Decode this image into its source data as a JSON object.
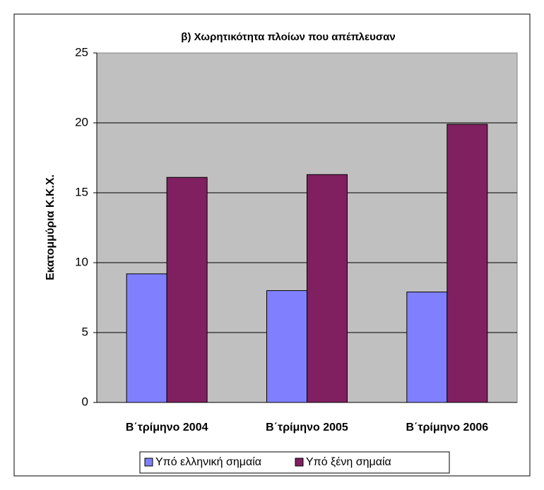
{
  "chart_data": {
    "type": "bar",
    "title": "β) Χωρητικότητα πλοίων που απέπλευσαν",
    "y_label": "Εκατομμύρια Κ.Κ.Χ.",
    "categories": [
      "Β΄τρίμηνο 2004",
      "Β΄τρίμηνο 2005",
      "Β΄τρίμηνο 2006"
    ],
    "series": [
      {
        "name": "Υπό ελληνική σημαία",
        "color": "#8080ff",
        "values": [
          9.2,
          8.0,
          7.9
        ]
      },
      {
        "name": "Υπό ξένη σημαία",
        "color": "#802060",
        "values": [
          16.1,
          16.3,
          19.9
        ]
      }
    ],
    "ylim": [
      0,
      25
    ],
    "yticks": [
      0,
      5,
      10,
      15,
      20,
      25
    ],
    "grid": true
  }
}
